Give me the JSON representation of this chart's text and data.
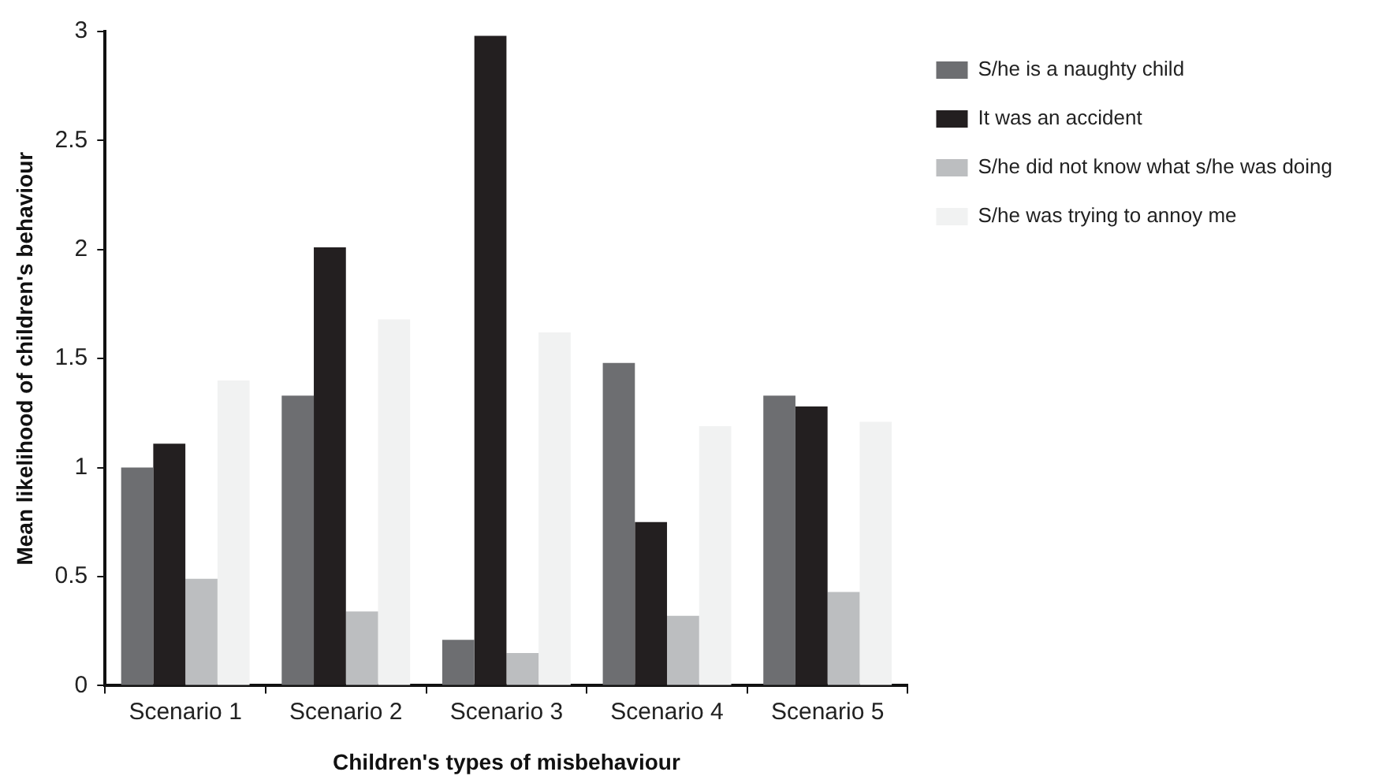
{
  "chart_data": {
    "type": "bar",
    "xlabel": "Children's types of misbehaviour",
    "ylabel": "Mean likelihood of children's behaviour",
    "categories": [
      "Scenario 1",
      "Scenario 2",
      "Scenario 3",
      "Scenario 4",
      "Scenario 5"
    ],
    "series": [
      {
        "name": "S/he is a naughty child",
        "color": "#6d6e71",
        "values": [
          1.0,
          1.33,
          0.21,
          1.48,
          1.33
        ]
      },
      {
        "name": "It was an accident",
        "color": "#231f20",
        "values": [
          1.11,
          2.01,
          2.98,
          0.75,
          1.28
        ]
      },
      {
        "name": "S/he did not know what s/he was doing",
        "color": "#bcbec0",
        "values": [
          0.49,
          0.34,
          0.15,
          0.32,
          0.43
        ]
      },
      {
        "name": "S/he was trying to annoy me",
        "color": "#f1f2f2",
        "values": [
          1.4,
          1.68,
          1.62,
          1.19,
          1.21
        ]
      }
    ],
    "ylim": [
      0,
      3
    ],
    "yticks": [
      0,
      0.5,
      1,
      1.5,
      2,
      2.5,
      3
    ],
    "grid": false,
    "legend": "top right"
  }
}
